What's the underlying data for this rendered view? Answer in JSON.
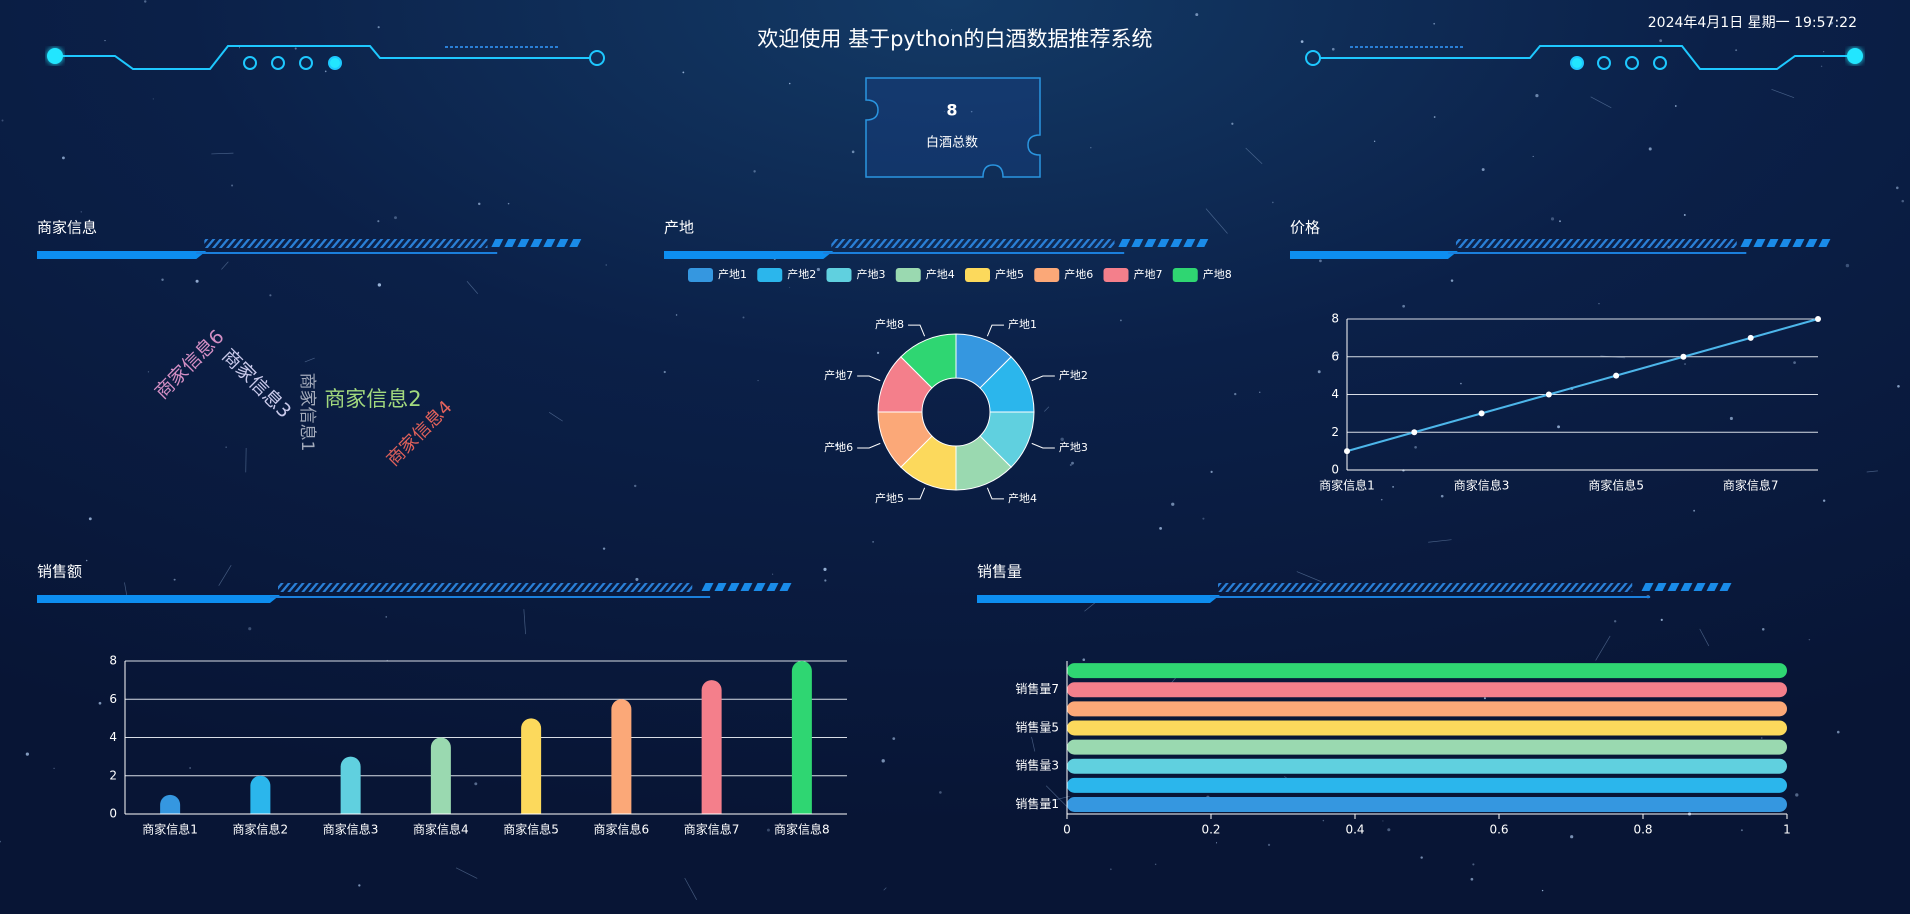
{
  "header": {
    "title": "欢迎使用 基于python的白酒数据推荐系统",
    "datetime": "2024年4月1日 星期一 19:57:22"
  },
  "stat": {
    "value": 8,
    "label": "白酒总数"
  },
  "chart_data": [
    {
      "type": "wordcloud",
      "title": "商家信息",
      "words": [
        "商家信息6",
        "商家信息3",
        "商家信息1",
        "商家信息2",
        "商家信息4"
      ],
      "colors": [
        "#d48fc4",
        "#c9c9ea",
        "#a4abbb",
        "#a3da7e",
        "#e2625b"
      ]
    },
    {
      "type": "pie",
      "title": "产地",
      "categories": [
        "产地1",
        "产地2",
        "产地3",
        "产地4",
        "产地5",
        "产地6",
        "产地7",
        "产地8"
      ],
      "values": [
        1,
        1,
        1,
        1,
        1,
        1,
        1,
        1
      ],
      "colors": [
        "#3597e0",
        "#2bb6ec",
        "#60d0df",
        "#9ad9b0",
        "#fcd95c",
        "#fba878",
        "#f47f8b",
        "#2fd672"
      ],
      "legend": "top"
    },
    {
      "type": "line",
      "title": "价格",
      "categories": [
        "商家信息1",
        null,
        "商家信息3",
        null,
        "商家信息5",
        null,
        "商家信息7",
        null
      ],
      "values": [
        1,
        2,
        3,
        4,
        5,
        6,
        7,
        8
      ],
      "color": "#4db6ea",
      "ylim": [
        0,
        8
      ],
      "yticks": [
        0,
        2,
        4,
        6,
        8
      ],
      "grid": true
    },
    {
      "type": "bar",
      "title": "销售额",
      "categories": [
        "商家信息1",
        "商家信息2",
        "商家信息3",
        "商家信息4",
        "商家信息5",
        "商家信息6",
        "商家信息7",
        "商家信息8"
      ],
      "values": [
        1,
        2,
        3,
        4,
        5,
        6,
        7,
        8
      ],
      "colors": [
        "#3597e0",
        "#2bb6ec",
        "#60d0df",
        "#9ad9b0",
        "#fcd95c",
        "#fba878",
        "#f47f8b",
        "#2fd672"
      ],
      "ylim": [
        0,
        8
      ],
      "yticks": [
        0,
        2,
        4,
        6,
        8
      ],
      "grid": true
    },
    {
      "type": "hbar",
      "title": "销售量",
      "categories": [
        "销售量1",
        null,
        "销售量3",
        null,
        "销售量5",
        null,
        "销售量7",
        null
      ],
      "values": [
        1,
        1,
        1,
        1,
        1,
        1,
        1,
        1
      ],
      "colors": [
        "#3597e0",
        "#2bb6ec",
        "#60d0df",
        "#9ad9b0",
        "#fcd95c",
        "#fba878",
        "#f47f8b",
        "#2fd672"
      ],
      "xlim": [
        0,
        1
      ],
      "xticks": [
        0,
        0.2,
        0.4,
        0.6,
        0.8,
        1
      ]
    }
  ]
}
